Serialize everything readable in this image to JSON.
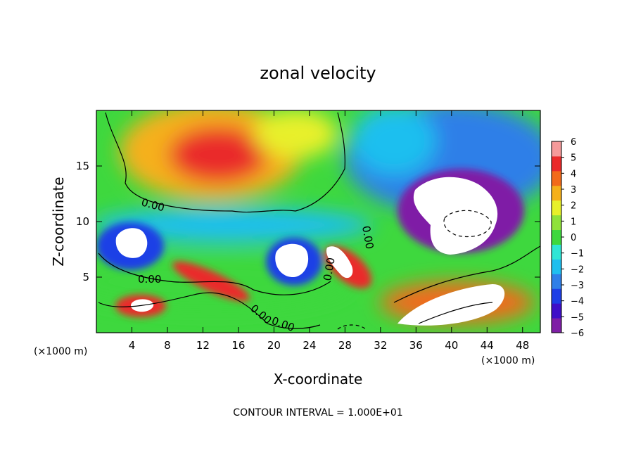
{
  "chart_data": {
    "type": "heatmap",
    "title": "zonal velocity",
    "xlabel": "X-coordinate",
    "ylabel": "Z-coordinate",
    "x_units_left": "(×1000 m)",
    "x_units_right": "(×1000 m)",
    "xlim": [
      0,
      50
    ],
    "ylim": [
      0,
      20
    ],
    "x_ticks": [
      "4",
      "8",
      "12",
      "16",
      "20",
      "24",
      "28",
      "32",
      "36",
      "40",
      "44",
      "48"
    ],
    "y_ticks": [
      "5",
      "10",
      "15"
    ],
    "colorbar": {
      "ticks": [
        "6",
        "5",
        "4",
        "3",
        "2",
        "1",
        "0",
        "−1",
        "−2",
        "−3",
        "−4",
        "−5",
        "−6"
      ],
      "range": [
        -6,
        6
      ],
      "colors": [
        "#7f1fa6",
        "#3f0fc8",
        "#1e3fe6",
        "#2f7fe8",
        "#1fbfef",
        "#2fe6d6",
        "#3ed83e",
        "#8fe23a",
        "#e8f02a",
        "#f5b01a",
        "#f26a1a",
        "#ea2a2a",
        "#f59a9a"
      ]
    },
    "contour_labels": [
      "0.00",
      "0.00",
      "0.00",
      "0.00",
      "0.00",
      "0.00"
    ],
    "contour_interval_text": "CONTOUR INTERVAL = 1.000E+01",
    "grid": false,
    "legend": "right"
  }
}
